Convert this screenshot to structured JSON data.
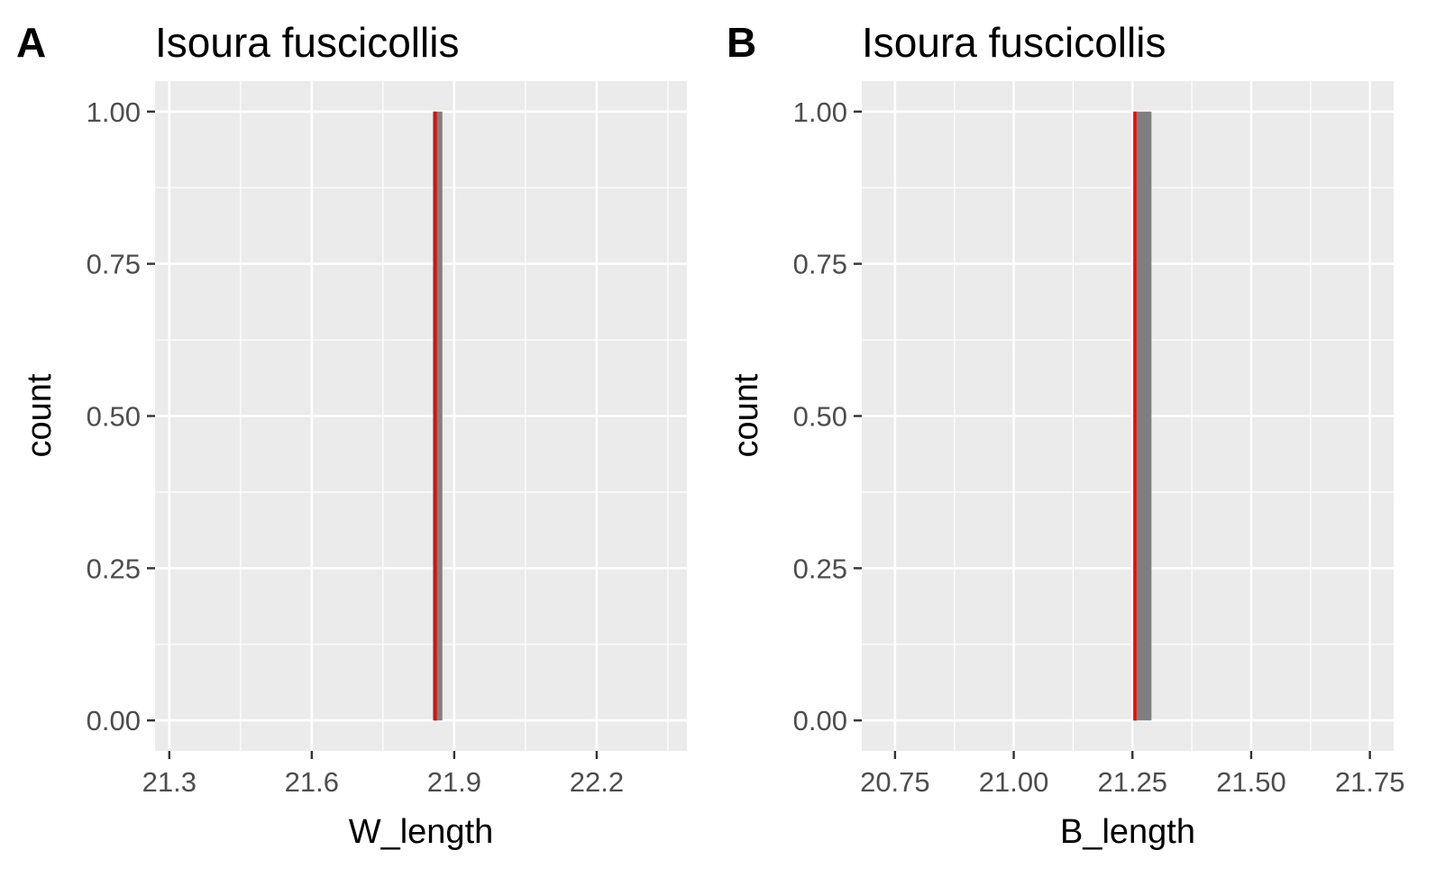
{
  "chart_data": [
    {
      "type": "bar",
      "panel_tag": "A",
      "title": "Isoura fuscicollis",
      "xlabel": "W_length",
      "ylabel": "count",
      "xlim": [
        21.27,
        22.39
      ],
      "ylim": [
        -0.05,
        1.05
      ],
      "xticks": [
        21.3,
        21.6,
        21.9,
        22.2
      ],
      "xtick_labels": [
        "21.3",
        "21.6",
        "21.9",
        "22.2"
      ],
      "yticks": [
        0,
        0.25,
        0.5,
        0.75,
        1
      ],
      "ytick_labels": [
        "0.00",
        "0.25",
        "0.50",
        "0.75",
        "1.00"
      ],
      "bars": [
        {
          "xmin": 21.855,
          "xmax": 21.875,
          "count": 1
        }
      ],
      "reference_line": {
        "x": 21.86,
        "color": "#ff0000"
      },
      "bar_color": "#7f7f7f",
      "grid": true,
      "panel_background": "#ebebeb"
    },
    {
      "type": "bar",
      "panel_tag": "B",
      "title": "Isoura fuscicollis",
      "xlabel": "B_length",
      "ylabel": "count",
      "xlim": [
        20.68,
        21.8
      ],
      "ylim": [
        -0.05,
        1.05
      ],
      "xticks": [
        20.75,
        21.0,
        21.25,
        21.5,
        21.75
      ],
      "xtick_labels": [
        "20.75",
        "21.00",
        "21.25",
        "21.50",
        "21.75"
      ],
      "yticks": [
        0,
        0.25,
        0.5,
        0.75,
        1
      ],
      "ytick_labels": [
        "0.00",
        "0.25",
        "0.50",
        "0.75",
        "1.00"
      ],
      "bars": [
        {
          "xmin": 21.255,
          "xmax": 21.29,
          "count": 1
        }
      ],
      "reference_line": {
        "x": 21.255,
        "color": "#ff0000"
      },
      "bar_color": "#7f7f7f",
      "grid": true,
      "panel_background": "#ebebeb"
    }
  ]
}
